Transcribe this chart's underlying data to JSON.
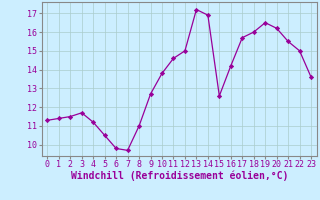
{
  "x": [
    0,
    1,
    2,
    3,
    4,
    5,
    6,
    7,
    8,
    9,
    10,
    11,
    12,
    13,
    14,
    15,
    16,
    17,
    18,
    19,
    20,
    21,
    22,
    23
  ],
  "y": [
    11.3,
    11.4,
    11.5,
    11.7,
    11.2,
    10.5,
    9.8,
    9.7,
    11.0,
    12.7,
    13.8,
    14.6,
    15.0,
    17.2,
    16.9,
    12.6,
    14.2,
    15.7,
    16.0,
    16.5,
    16.2,
    15.5,
    15.0,
    13.6
  ],
  "line_color": "#990099",
  "marker": "D",
  "marker_size": 2.2,
  "bg_color": "#cceeff",
  "grid_color": "#aacccc",
  "xlabel": "Windchill (Refroidissement éolien,°C)",
  "ylabel_ticks": [
    10,
    11,
    12,
    13,
    14,
    15,
    16,
    17
  ],
  "xlim": [
    -0.5,
    23.5
  ],
  "ylim": [
    9.4,
    17.6
  ],
  "tick_fontsize": 6.0,
  "label_fontsize": 7.0
}
